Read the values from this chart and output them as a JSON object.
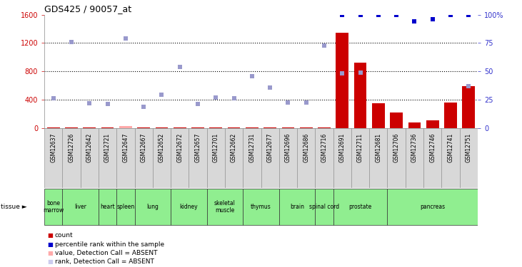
{
  "title": "GDS425 / 90057_at",
  "samples": [
    "GSM12637",
    "GSM12726",
    "GSM12642",
    "GSM12721",
    "GSM12647",
    "GSM12667",
    "GSM12652",
    "GSM12672",
    "GSM12657",
    "GSM12701",
    "GSM12662",
    "GSM12731",
    "GSM12677",
    "GSM12696",
    "GSM12686",
    "GSM12716",
    "GSM12691",
    "GSM12711",
    "GSM12681",
    "GSM12706",
    "GSM12736",
    "GSM12746",
    "GSM12741",
    "GSM12751"
  ],
  "tissue_groups": [
    {
      "name": "bone\nmarrow",
      "indices": [
        0
      ]
    },
    {
      "name": "liver",
      "indices": [
        1,
        2
      ]
    },
    {
      "name": "heart",
      "indices": [
        3
      ]
    },
    {
      "name": "spleen",
      "indices": [
        4
      ]
    },
    {
      "name": "lung",
      "indices": [
        5,
        6
      ]
    },
    {
      "name": "kidney",
      "indices": [
        7,
        8
      ]
    },
    {
      "name": "skeletal\nmuscle",
      "indices": [
        9,
        10
      ]
    },
    {
      "name": "thymus",
      "indices": [
        11,
        12
      ]
    },
    {
      "name": "brain",
      "indices": [
        13,
        14
      ]
    },
    {
      "name": "spinal cord",
      "indices": [
        15
      ]
    },
    {
      "name": "prostate",
      "indices": [
        16,
        17,
        18
      ]
    },
    {
      "name": "pancreas",
      "indices": [
        19,
        20,
        21,
        22,
        23
      ]
    }
  ],
  "bar_values": [
    15,
    15,
    15,
    15,
    28,
    15,
    15,
    15,
    15,
    15,
    15,
    15,
    15,
    15,
    15,
    15,
    1350,
    920,
    350,
    220,
    80,
    110,
    360,
    590
  ],
  "bar_absent": [
    false,
    false,
    false,
    false,
    true,
    false,
    false,
    false,
    false,
    false,
    false,
    false,
    false,
    false,
    false,
    false,
    false,
    false,
    false,
    false,
    false,
    false,
    false,
    false
  ],
  "value_markers": [
    420,
    1215,
    355,
    340,
    1265,
    305,
    470,
    860,
    345,
    435,
    425,
    730,
    575,
    360,
    360,
    1160,
    775,
    780,
    null,
    null,
    null,
    null,
    null,
    590
  ],
  "value_absent": [
    false,
    false,
    false,
    false,
    false,
    false,
    false,
    false,
    false,
    false,
    false,
    false,
    false,
    false,
    false,
    false,
    false,
    false,
    true,
    true,
    true,
    true,
    true,
    false
  ],
  "rank_values_pct": [
    null,
    null,
    null,
    null,
    null,
    null,
    null,
    null,
    null,
    null,
    null,
    null,
    null,
    null,
    null,
    null,
    100,
    100,
    100,
    100,
    94,
    96,
    100,
    100
  ],
  "rank_absent": [
    true,
    true,
    true,
    true,
    true,
    true,
    true,
    true,
    true,
    true,
    true,
    true,
    true,
    true,
    true,
    true,
    false,
    false,
    false,
    false,
    false,
    false,
    false,
    false
  ],
  "ylim_left": [
    0,
    1600
  ],
  "ylim_right": [
    0,
    100
  ],
  "yticks_left": [
    0,
    400,
    800,
    1200,
    1600
  ],
  "ytick_labels_left": [
    "0",
    "400",
    "800",
    "1200",
    "1600"
  ],
  "yticks_right": [
    0,
    25,
    50,
    75,
    100
  ],
  "ytick_labels_right": [
    "0",
    "25",
    "50",
    "75",
    "100%"
  ],
  "left_axis_color": "#CC0000",
  "right_axis_color": "#3333CC",
  "bar_color": "#CC0000",
  "bar_absent_color": "#FFAAAA",
  "value_marker_color": "#9999CC",
  "value_absent_color": "#CCCCEE",
  "rank_marker_color": "#0000CC",
  "background_color": "#FFFFFF",
  "plot_bg_color": "#FFFFFF",
  "grid_color": "#000000",
  "gray_bg": "#D8D8D8",
  "green_bg": "#90EE90",
  "legend_items": [
    {
      "color": "#CC0000",
      "label": "count"
    },
    {
      "color": "#0000CC",
      "label": "percentile rank within the sample"
    },
    {
      "color": "#FFAAAA",
      "label": "value, Detection Call = ABSENT"
    },
    {
      "color": "#CCCCEE",
      "label": "rank, Detection Call = ABSENT"
    }
  ]
}
